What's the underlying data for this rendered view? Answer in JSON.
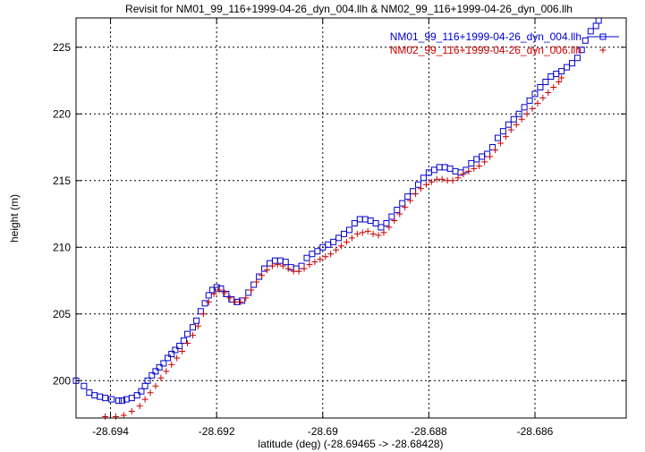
{
  "chart_data": {
    "type": "scatter",
    "title": "Revisit for NM01_99_116+1999-04-26_dyn_004.llh & NM02_99_116+1999-04-26_dyn_006.llh",
    "xlabel": "latitude (deg) (-28.69465 -> -28.68428)",
    "ylabel": "height (m)",
    "xlim": [
      -28.69465,
      -28.68428
    ],
    "ylim": [
      197.2,
      227.2
    ],
    "x_ticks": [
      -28.694,
      -28.692,
      -28.69,
      -28.688,
      -28.686
    ],
    "x_tick_labels": [
      "-28.694",
      "-28.692",
      "-28.69",
      "-28.688",
      "-28.686"
    ],
    "y_ticks": [
      200,
      205,
      210,
      215,
      220,
      225
    ],
    "y_tick_labels": [
      "200",
      "205",
      "210",
      "215",
      "220",
      "225"
    ],
    "grid": true,
    "legend_position": "top-right",
    "series": [
      {
        "name": "NM01_99_116+1999-04-26_dyn_004.llh",
        "marker": "square",
        "color": "#0000cc",
        "points": [
          [
            -28.69465,
            200.0
          ],
          [
            -28.6945,
            199.6
          ],
          [
            -28.6944,
            199.1
          ],
          [
            -28.6943,
            198.9
          ],
          [
            -28.6942,
            198.8
          ],
          [
            -28.6941,
            198.7
          ],
          [
            -28.69398,
            198.6
          ],
          [
            -28.69385,
            198.5
          ],
          [
            -28.69378,
            198.5
          ],
          [
            -28.6937,
            198.6
          ],
          [
            -28.6936,
            198.7
          ],
          [
            -28.6935,
            198.9
          ],
          [
            -28.69342,
            199.2
          ],
          [
            -28.69335,
            199.6
          ],
          [
            -28.6933,
            200.0
          ],
          [
            -28.69322,
            200.4
          ],
          [
            -28.69315,
            200.7
          ],
          [
            -28.69308,
            201.0
          ],
          [
            -28.693,
            201.3
          ],
          [
            -28.69292,
            201.7
          ],
          [
            -28.69285,
            202.0
          ],
          [
            -28.69278,
            202.3
          ],
          [
            -28.6927,
            202.6
          ],
          [
            -28.69262,
            203.0
          ],
          [
            -28.69255,
            203.5
          ],
          [
            -28.69245,
            204.0
          ],
          [
            -28.69238,
            204.5
          ],
          [
            -28.6923,
            205.2
          ],
          [
            -28.69222,
            205.8
          ],
          [
            -28.69215,
            206.4
          ],
          [
            -28.69208,
            206.8
          ],
          [
            -28.692,
            207.0
          ],
          [
            -28.69192,
            206.9
          ],
          [
            -28.69182,
            206.5
          ],
          [
            -28.69172,
            206.1
          ],
          [
            -28.69162,
            205.9
          ],
          [
            -28.69152,
            206.0
          ],
          [
            -28.6914,
            206.6
          ],
          [
            -28.6913,
            207.2
          ],
          [
            -28.6912,
            207.8
          ],
          [
            -28.6911,
            208.4
          ],
          [
            -28.691,
            208.8
          ],
          [
            -28.6909,
            209.0
          ],
          [
            -28.6908,
            209.0
          ],
          [
            -28.6907,
            208.9
          ],
          [
            -28.6906,
            208.5
          ],
          [
            -28.6905,
            208.4
          ],
          [
            -28.6904,
            208.6
          ],
          [
            -28.6903,
            209.2
          ],
          [
            -28.6902,
            209.5
          ],
          [
            -28.6901,
            209.7
          ],
          [
            -28.69,
            210.0
          ],
          [
            -28.6899,
            210.2
          ],
          [
            -28.6898,
            210.4
          ],
          [
            -28.6897,
            210.7
          ],
          [
            -28.6896,
            211.0
          ],
          [
            -28.6895,
            211.3
          ],
          [
            -28.6894,
            211.8
          ],
          [
            -28.6893,
            212.1
          ],
          [
            -28.6892,
            212.1
          ],
          [
            -28.6891,
            212.0
          ],
          [
            -28.689,
            211.8
          ],
          [
            -28.6889,
            211.5
          ],
          [
            -28.6888,
            211.8
          ],
          [
            -28.6887,
            212.3
          ],
          [
            -28.6886,
            212.8
          ],
          [
            -28.6885,
            213.3
          ],
          [
            -28.6884,
            213.8
          ],
          [
            -28.6883,
            214.2
          ],
          [
            -28.6882,
            214.7
          ],
          [
            -28.6881,
            215.2
          ],
          [
            -28.688,
            215.6
          ],
          [
            -28.6879,
            215.8
          ],
          [
            -28.6878,
            216.0
          ],
          [
            -28.6877,
            216.0
          ],
          [
            -28.6876,
            215.9
          ],
          [
            -28.6875,
            215.7
          ],
          [
            -28.6874,
            215.6
          ],
          [
            -28.6873,
            215.8
          ],
          [
            -28.6872,
            216.3
          ],
          [
            -28.6871,
            216.6
          ],
          [
            -28.687,
            216.8
          ],
          [
            -28.6869,
            217.0
          ],
          [
            -28.6868,
            217.5
          ],
          [
            -28.6867,
            218.2
          ],
          [
            -28.6866,
            218.7
          ],
          [
            -28.6865,
            219.2
          ],
          [
            -28.6864,
            219.6
          ],
          [
            -28.6863,
            220.0
          ],
          [
            -28.6862,
            220.5
          ],
          [
            -28.6861,
            221.0
          ],
          [
            -28.686,
            221.5
          ],
          [
            -28.6859,
            222.0
          ],
          [
            -28.6858,
            222.4
          ],
          [
            -28.6857,
            222.8
          ],
          [
            -28.6856,
            223.0
          ],
          [
            -28.6855,
            223.2
          ],
          [
            -28.6854,
            223.5
          ],
          [
            -28.6853,
            223.8
          ],
          [
            -28.6852,
            224.2
          ],
          [
            -28.68512,
            224.8
          ],
          [
            -28.68505,
            225.5
          ],
          [
            -28.68495,
            226.2
          ],
          [
            -28.68485,
            226.6
          ],
          [
            -28.6848,
            227.0
          ]
        ]
      },
      {
        "name": "NM02_99_116+1999-04-26_dyn_006.llh",
        "marker": "plus",
        "color": "#cc0000",
        "points": [
          [
            -28.6941,
            197.3
          ],
          [
            -28.6939,
            197.3
          ],
          [
            -28.69375,
            197.4
          ],
          [
            -28.6936,
            197.7
          ],
          [
            -28.69345,
            198.1
          ],
          [
            -28.69335,
            198.6
          ],
          [
            -28.69325,
            199.1
          ],
          [
            -28.69315,
            199.6
          ],
          [
            -28.69305,
            200.2
          ],
          [
            -28.69295,
            200.7
          ],
          [
            -28.69285,
            201.2
          ],
          [
            -28.69275,
            201.7
          ],
          [
            -28.69265,
            202.2
          ],
          [
            -28.69255,
            202.8
          ],
          [
            -28.69245,
            203.4
          ],
          [
            -28.69235,
            204.1
          ],
          [
            -28.69225,
            205.0
          ],
          [
            -28.69215,
            205.9
          ],
          [
            -28.69205,
            206.5
          ],
          [
            -28.69195,
            206.8
          ],
          [
            -28.69185,
            206.6
          ],
          [
            -28.69175,
            206.2
          ],
          [
            -28.69165,
            205.9
          ],
          [
            -28.69155,
            205.9
          ],
          [
            -28.69145,
            206.2
          ],
          [
            -28.69135,
            206.8
          ],
          [
            -28.69125,
            207.4
          ],
          [
            -28.69115,
            207.9
          ],
          [
            -28.69105,
            208.3
          ],
          [
            -28.69095,
            208.6
          ],
          [
            -28.69085,
            208.7
          ],
          [
            -28.69075,
            208.6
          ],
          [
            -28.69065,
            208.4
          ],
          [
            -28.69055,
            208.2
          ],
          [
            -28.69045,
            208.2
          ],
          [
            -28.69035,
            208.4
          ],
          [
            -28.69025,
            208.7
          ],
          [
            -28.69015,
            208.9
          ],
          [
            -28.69005,
            209.1
          ],
          [
            -28.68995,
            209.3
          ],
          [
            -28.68985,
            209.5
          ],
          [
            -28.68975,
            209.8
          ],
          [
            -28.68965,
            210.1
          ],
          [
            -28.68955,
            210.4
          ],
          [
            -28.68945,
            210.7
          ],
          [
            -28.68935,
            211.0
          ],
          [
            -28.68925,
            211.1
          ],
          [
            -28.68915,
            211.2
          ],
          [
            -28.68905,
            211.0
          ],
          [
            -28.68895,
            210.9
          ],
          [
            -28.68885,
            211.1
          ],
          [
            -28.68875,
            211.5
          ],
          [
            -28.68865,
            212.0
          ],
          [
            -28.68855,
            212.5
          ],
          [
            -28.68845,
            213.0
          ],
          [
            -28.68835,
            213.5
          ],
          [
            -28.68825,
            214.0
          ],
          [
            -28.68815,
            214.4
          ],
          [
            -28.68805,
            214.7
          ],
          [
            -28.68795,
            214.9
          ],
          [
            -28.68785,
            215.1
          ],
          [
            -28.68775,
            215.1
          ],
          [
            -28.68765,
            215.0
          ],
          [
            -28.68755,
            215.0
          ],
          [
            -28.68745,
            215.2
          ],
          [
            -28.68735,
            215.5
          ],
          [
            -28.68725,
            215.7
          ],
          [
            -28.68715,
            215.9
          ],
          [
            -28.68705,
            216.1
          ],
          [
            -28.68695,
            216.4
          ],
          [
            -28.68685,
            216.8
          ],
          [
            -28.68675,
            217.3
          ],
          [
            -28.68665,
            217.8
          ],
          [
            -28.68655,
            218.3
          ],
          [
            -28.68645,
            218.8
          ],
          [
            -28.68635,
            219.2
          ],
          [
            -28.68625,
            219.6
          ],
          [
            -28.68615,
            220.0
          ],
          [
            -28.68605,
            220.4
          ],
          [
            -28.68595,
            220.8
          ],
          [
            -28.68585,
            221.2
          ],
          [
            -28.68575,
            221.6
          ],
          [
            -28.68565,
            222.0
          ],
          [
            -28.68555,
            222.4
          ],
          [
            -28.6855,
            222.7
          ]
        ]
      }
    ]
  }
}
